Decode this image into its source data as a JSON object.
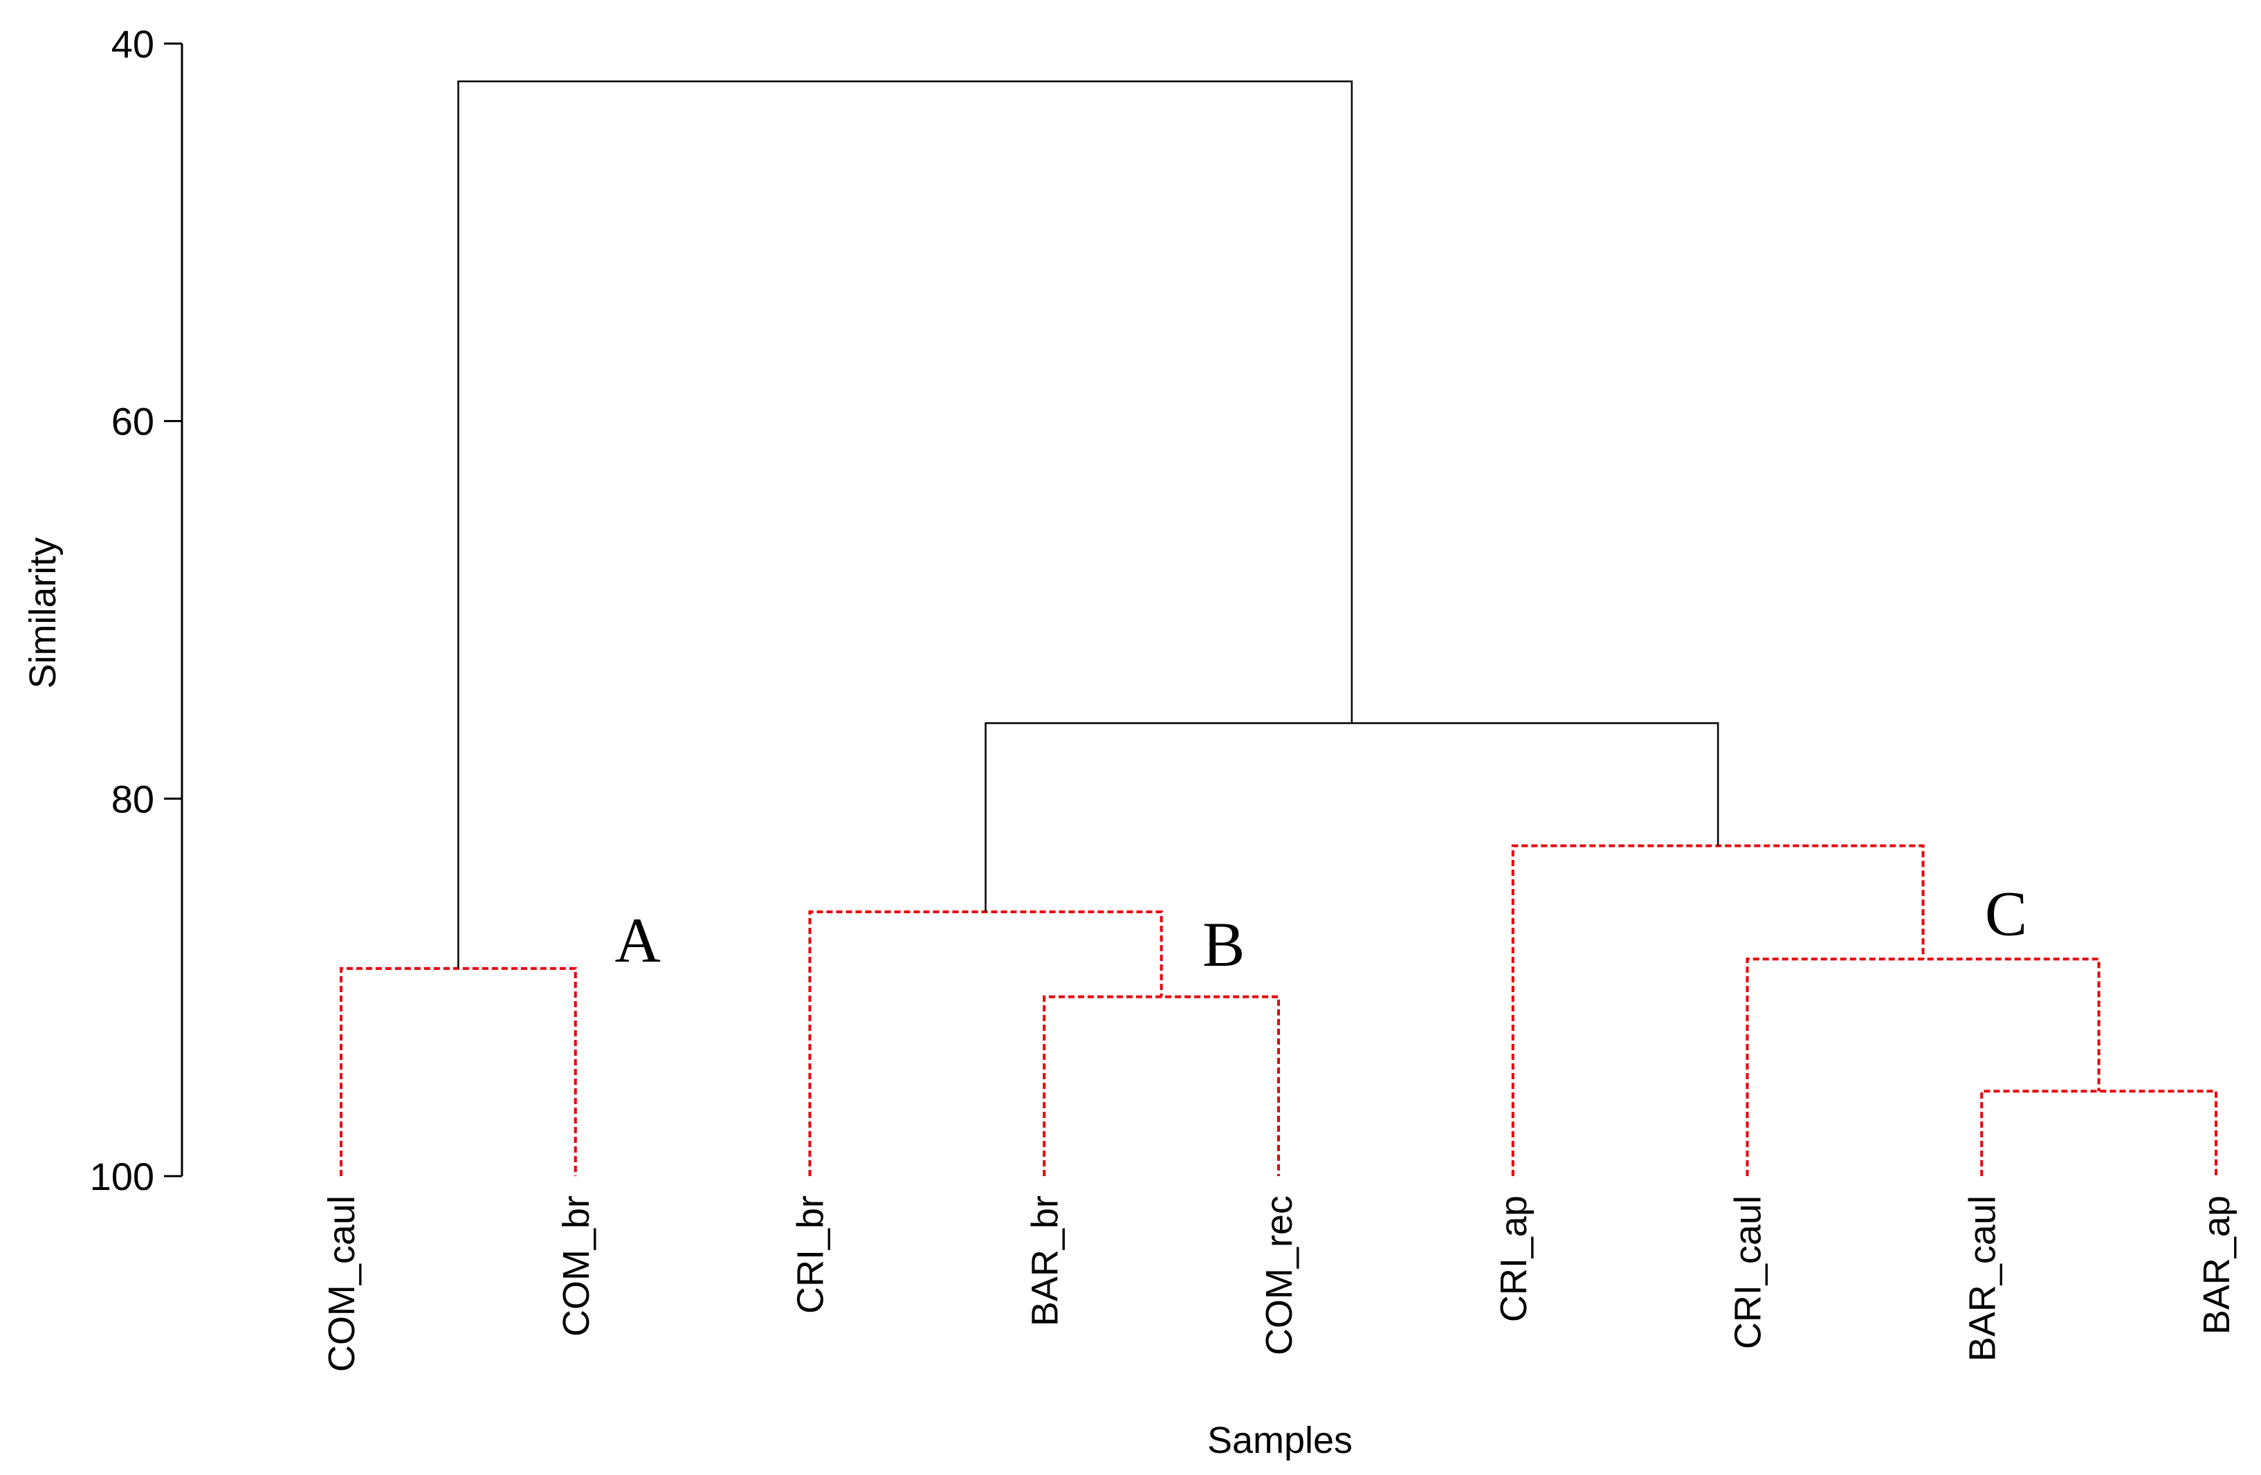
{
  "chart_data": {
    "type": "dendrogram",
    "xlabel": "Samples",
    "ylabel": "Similarity",
    "ylim": [
      40,
      100
    ],
    "yticks": [
      40,
      60,
      80,
      100
    ],
    "leaves": [
      "COM_caul",
      "COM_br",
      "CRI_br",
      "BAR_br",
      "COM_rec",
      "CRI_ap",
      "CRI_caul",
      "BAR_caul",
      "BAR_ap"
    ],
    "merges": [
      {
        "id": "m1",
        "left": "COM_caul",
        "right": "COM_br",
        "similarity": 89,
        "style": "dashed-red"
      },
      {
        "id": "m2",
        "left": "BAR_br",
        "right": "COM_rec",
        "similarity": 90.5,
        "style": "dashed-red"
      },
      {
        "id": "m3",
        "left": "CRI_br",
        "right": "m2",
        "similarity": 86,
        "style": "dashed-red"
      },
      {
        "id": "m4",
        "left": "BAR_caul",
        "right": "BAR_ap",
        "similarity": 95.5,
        "style": "dashed-red"
      },
      {
        "id": "m5",
        "left": "CRI_caul",
        "right": "m4",
        "similarity": 88.5,
        "style": "dashed-red"
      },
      {
        "id": "m6",
        "left": "CRI_ap",
        "right": "m5",
        "similarity": 82.5,
        "style": "dashed-red"
      },
      {
        "id": "m7",
        "left": "m3",
        "right": "m6",
        "similarity": 76,
        "style": "solid-black"
      },
      {
        "id": "m8",
        "left": "m1",
        "right": "m7",
        "similarity": 42,
        "style": "solid-black"
      }
    ],
    "group_labels": [
      {
        "text": "A",
        "near": "m1"
      },
      {
        "text": "B",
        "near": "m3"
      },
      {
        "text": "C",
        "near": "m5"
      }
    ],
    "colors": {
      "cluster": "#e8000b",
      "link": "#000000"
    }
  }
}
